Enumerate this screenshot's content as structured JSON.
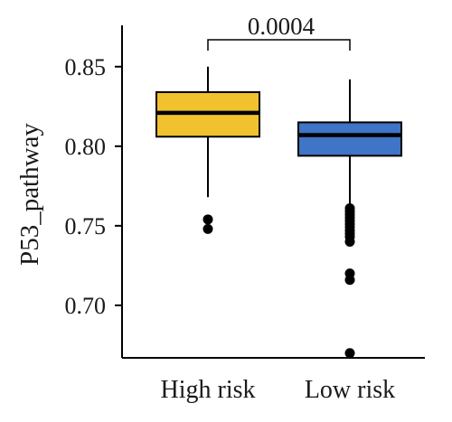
{
  "chart_data": {
    "type": "boxplot",
    "title": "",
    "xlabel": "",
    "ylabel": "P53_pathway",
    "ylim": [
      0.667,
      0.876
    ],
    "yticks": [
      0.7,
      0.75,
      0.8,
      0.85
    ],
    "ytick_labels": [
      "0.70",
      "0.75",
      "0.80",
      "0.85"
    ],
    "categories": [
      "High risk",
      "Low risk"
    ],
    "series": [
      {
        "category": "High risk",
        "color": "#F2C12E",
        "whisker_low": 0.768,
        "q1": 0.806,
        "median": 0.821,
        "q3": 0.834,
        "whisker_high": 0.85,
        "outliers": [
          0.754,
          0.748
        ]
      },
      {
        "category": "Low risk",
        "color": "#3F74C6",
        "whisker_low": 0.763,
        "q1": 0.794,
        "median": 0.807,
        "q3": 0.815,
        "whisker_high": 0.842,
        "outliers": [
          0.761,
          0.759,
          0.757,
          0.755,
          0.753,
          0.751,
          0.749,
          0.747,
          0.745,
          0.743,
          0.74,
          0.72,
          0.716,
          0.67
        ]
      }
    ],
    "comparison": {
      "between": [
        "High risk",
        "Low risk"
      ],
      "p_value": "0.0004"
    },
    "grid": false,
    "legend": "none"
  }
}
